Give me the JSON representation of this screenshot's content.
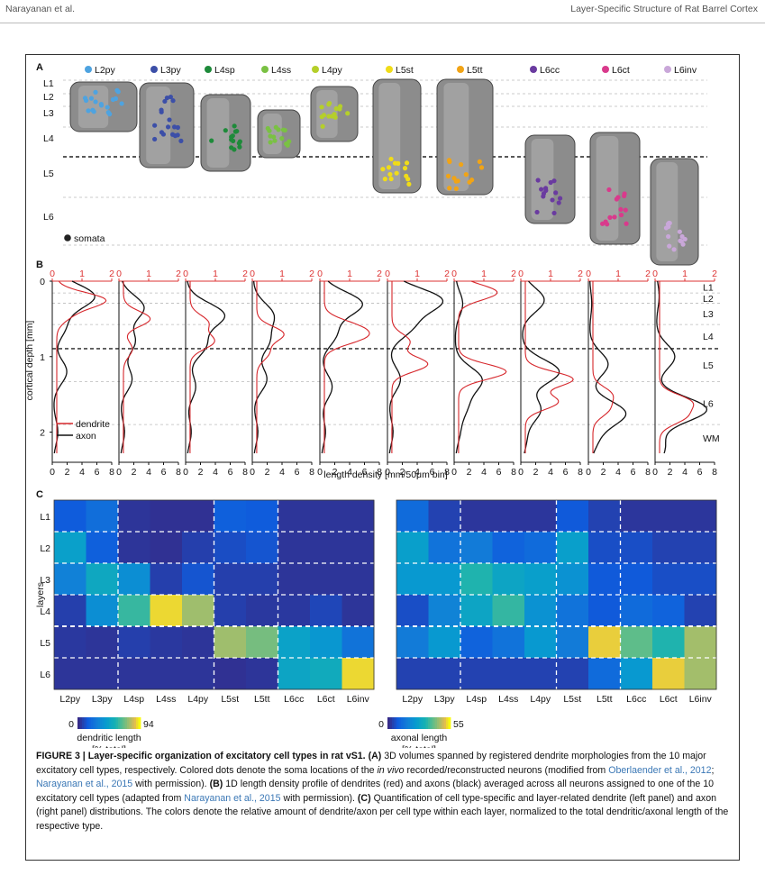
{
  "header": {
    "left": "Narayanan et al.",
    "right": "Layer-Specific Structure of Rat Barrel Cortex"
  },
  "panelA": {
    "label": "A",
    "cells": [
      {
        "name": "L2py",
        "color": "#4ea3e0"
      },
      {
        "name": "L3py",
        "color": "#3c4fa8"
      },
      {
        "name": "L4sp",
        "color": "#1e8a3a"
      },
      {
        "name": "L4ss",
        "color": "#7ac143"
      },
      {
        "name": "L4py",
        "color": "#b5cf2a"
      },
      {
        "name": "L5st",
        "color": "#f0dc18"
      },
      {
        "name": "L5tt",
        "color": "#f1a416"
      },
      {
        "name": "L6cc",
        "color": "#6a3ba0"
      },
      {
        "name": "L6ct",
        "color": "#d93a8c"
      },
      {
        "name": "L6inv",
        "color": "#c9a7d9"
      }
    ],
    "layers": [
      "L1",
      "L2",
      "L3",
      "L4",
      "L5",
      "L6"
    ],
    "somata_label": "somata"
  },
  "panelB": {
    "label": "B",
    "top_ticks": [
      "0",
      "1",
      "2"
    ],
    "bottom_ticks": [
      "0",
      "2",
      "4",
      "6",
      "8"
    ],
    "ylabel": "cortical depth [mm]",
    "yticks": [
      "0",
      "1",
      "2"
    ],
    "xlabel": "length density [mm/50μm bin]",
    "legend": {
      "dendrite": "dendrite",
      "axon": "axon"
    },
    "layers": [
      "L1",
      "L2",
      "L3",
      "L4",
      "L5",
      "L6",
      "WM"
    ]
  },
  "panelC": {
    "label": "C",
    "ylabel": "layers",
    "rows": [
      "L1",
      "L2",
      "L3",
      "L4",
      "L5",
      "L6"
    ],
    "cols": [
      "L2py",
      "L3py",
      "L4sp",
      "L4ss",
      "L4py",
      "L5st",
      "L5tt",
      "L6cc",
      "L6ct",
      "L6inv"
    ],
    "dendrite": {
      "max": 94,
      "min_label": "0",
      "max_label": "94",
      "cb_label_1": "dendritic length",
      "cb_label_2": "[% total]",
      "matrix": [
        [
          14,
          22,
          3,
          2,
          2,
          16,
          14,
          3,
          3,
          3
        ],
        [
          45,
          16,
          3,
          2,
          6,
          10,
          12,
          3,
          3,
          3
        ],
        [
          30,
          50,
          36,
          6,
          12,
          6,
          6,
          3,
          3,
          3
        ],
        [
          6,
          36,
          62,
          90,
          78,
          6,
          4,
          4,
          8,
          3
        ],
        [
          4,
          3,
          6,
          4,
          3,
          78,
          72,
          46,
          40,
          24
        ],
        [
          3,
          3,
          3,
          3,
          3,
          2,
          3,
          48,
          52,
          90
        ]
      ]
    },
    "axon": {
      "max": 55,
      "min_label": "0",
      "max_label": "55",
      "cb_label_1": "axonal length",
      "cb_label_2": "[% total]",
      "matrix": [
        [
          12,
          4,
          2,
          2,
          2,
          8,
          4,
          2,
          2,
          2
        ],
        [
          26,
          14,
          16,
          10,
          12,
          26,
          6,
          6,
          4,
          4
        ],
        [
          24,
          24,
          34,
          28,
          26,
          22,
          8,
          8,
          6,
          6
        ],
        [
          6,
          18,
          28,
          36,
          22,
          14,
          8,
          12,
          10,
          4
        ],
        [
          16,
          24,
          10,
          14,
          24,
          16,
          52,
          40,
          34,
          46
        ],
        [
          4,
          4,
          4,
          4,
          4,
          4,
          12,
          24,
          52,
          46
        ]
      ]
    }
  },
  "caption": {
    "label": "FIGURE 3 |",
    "title": "Layer-specific organization of excitatory cell types in rat vS1.",
    "p1": "(A)",
    "t1": "3D volumes spanned by registered dendrite morphologies from the 10 major excitatory cell types, respectively. Colored dots denote the soma locations of the",
    "t1i": "in vivo",
    "t1b": "recorded/reconstructed neurons (modified from",
    "r1": "Oberlaender et al., 2012",
    "sep": ";",
    "r2": "Narayanan et al., 2015",
    "t1c": "with permission).",
    "p2": "(B)",
    "t2": "1D length density profile of dendrites (red) and axons (black) averaged across all neurons assigned to one of the 10 excitatory cell types (adapted from",
    "r3": "Narayanan et al., 2015",
    "t2b": "with permission).",
    "p3": "(C)",
    "t3": "Quantification of cell type-specific and layer-related dendrite (left panel) and axon (right panel) distributions. The colors denote the relative amount of dendrite/axon per cell type within each layer, normalized to the total dendritic/axonal length of the respective type."
  }
}
